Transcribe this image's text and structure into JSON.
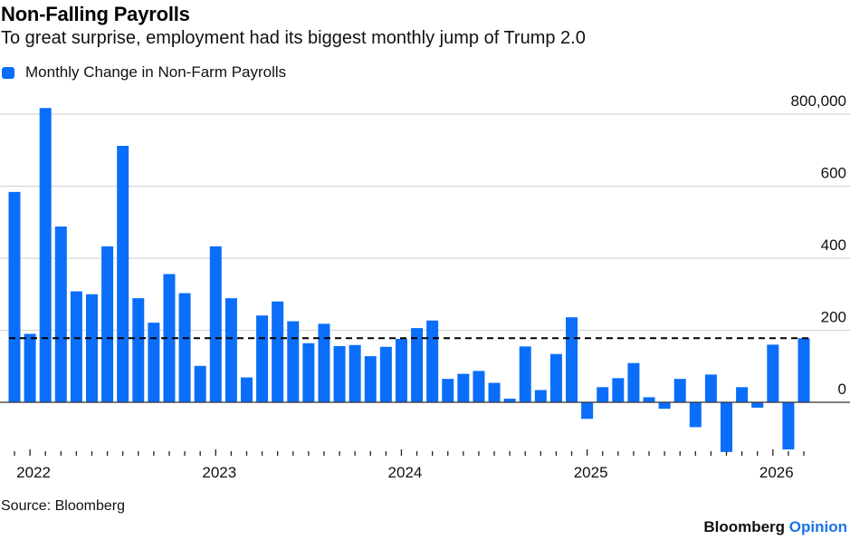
{
  "header": {
    "title": "Non-Falling Payrolls",
    "subtitle": "To great surprise, employment had its biggest monthly jump of Trump 2.0"
  },
  "legend": {
    "label": "Monthly Change in Non-Farm Payrolls",
    "color": "#0a6efa"
  },
  "footer": {
    "source": "Source: Bloomberg",
    "brand_primary": "Bloomberg",
    "brand_secondary": "Opinion"
  },
  "chart_data": {
    "type": "bar",
    "title": "Non-Falling Payrolls",
    "subtitle": "To great surprise, employment had its biggest monthly jump of Trump 2.0",
    "xlabel": "",
    "ylabel": "",
    "series": [
      {
        "name": "Monthly Change in Non-Farm Payrolls",
        "color": "#0a6efa",
        "values": [
          584000,
          190000,
          817000,
          488000,
          308000,
          300000,
          433000,
          712000,
          289000,
          221000,
          356000,
          303000,
          101000,
          433000,
          289000,
          69000,
          241000,
          280000,
          225000,
          164000,
          218000,
          156000,
          159000,
          128000,
          154000,
          176000,
          206000,
          227000,
          65000,
          79000,
          87000,
          54000,
          10000,
          155000,
          34000,
          134000,
          236000,
          -46000,
          42000,
          67000,
          109000,
          14000,
          -18000,
          65000,
          -69000,
          77000,
          -138000,
          42000,
          -15000,
          160000,
          -131000,
          178000
        ]
      }
    ],
    "categories": [
      "2021-12",
      "2022-01",
      "2022-02",
      "2022-03",
      "2022-04",
      "2022-05",
      "2022-06",
      "2022-07",
      "2022-08",
      "2022-09",
      "2022-10",
      "2022-11",
      "2022-12",
      "2023-01",
      "2023-02",
      "2023-03",
      "2023-04",
      "2023-05",
      "2023-06",
      "2023-07",
      "2023-08",
      "2023-09",
      "2023-10",
      "2023-11",
      "2023-12",
      "2024-01",
      "2024-02",
      "2024-03",
      "2024-04",
      "2024-05",
      "2024-06",
      "2024-07",
      "2024-08",
      "2024-09",
      "2024-10",
      "2024-11",
      "2024-12",
      "2025-01",
      "2025-02",
      "2025-03",
      "2025-04",
      "2025-05",
      "2025-06",
      "2025-07",
      "2025-08",
      "2025-09",
      "2025-10",
      "2025-11",
      "2025-12",
      "2026-01",
      "2026-02",
      "2026-03"
    ],
    "x_tick_labels": [
      {
        "category": "2022-01",
        "label": "2022"
      },
      {
        "category": "2023-01",
        "label": "2023"
      },
      {
        "category": "2024-01",
        "label": "2024"
      },
      {
        "category": "2025-01",
        "label": "2025"
      },
      {
        "category": "2026-01",
        "label": "2026"
      }
    ],
    "y_ticks": [
      0,
      200000,
      400000,
      600000,
      800000
    ],
    "y_tick_labels": [
      "0",
      "200",
      "400",
      "600",
      "800,000"
    ],
    "ylim": [
      -160000,
      830000
    ],
    "reference_line": {
      "value": 178000,
      "style": "dashed",
      "color": "#000000",
      "description": "Latest value level"
    },
    "grid": true,
    "y_axis_position": "right",
    "legend_position": "top-left"
  }
}
